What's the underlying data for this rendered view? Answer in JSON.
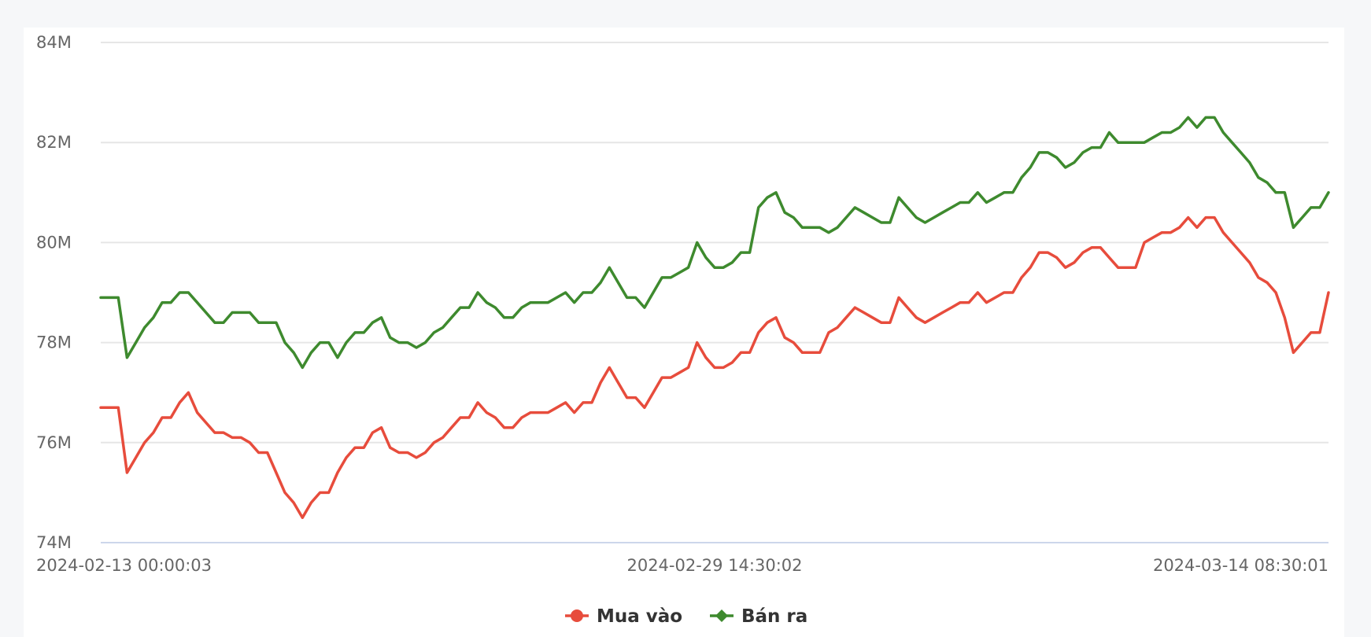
{
  "chart_data": {
    "type": "line",
    "title": "",
    "xlabel": "",
    "ylabel": "",
    "ylim": [
      74,
      84
    ],
    "y_unit_suffix": "M",
    "y_ticks": [
      74,
      76,
      78,
      80,
      82,
      84
    ],
    "y_tick_labels": [
      "74M",
      "76M",
      "78M",
      "80M",
      "82M",
      "84M"
    ],
    "x_tick_labels": [
      {
        "index": 0,
        "label": "2024-02-13 00:00:03"
      },
      {
        "index": 70,
        "label": "2024-02-29 14:30:02"
      },
      {
        "index": 141,
        "label": "2024-03-14 08:30:01"
      }
    ],
    "grid": true,
    "legend_position": "bottom-center",
    "series": [
      {
        "name": "Mua vào",
        "color": "#e74c3c",
        "marker": "circle",
        "values": [
          76.7,
          76.7,
          76.7,
          75.4,
          75.7,
          76.0,
          76.2,
          76.5,
          76.5,
          76.8,
          77.0,
          76.6,
          76.4,
          76.2,
          76.2,
          76.1,
          76.1,
          76.0,
          75.8,
          75.8,
          75.4,
          75.0,
          74.8,
          74.5,
          74.8,
          75.0,
          75.0,
          75.4,
          75.7,
          75.9,
          75.9,
          76.2,
          76.3,
          75.9,
          75.8,
          75.8,
          75.7,
          75.8,
          76.0,
          76.1,
          76.3,
          76.5,
          76.5,
          76.8,
          76.6,
          76.5,
          76.3,
          76.3,
          76.5,
          76.6,
          76.6,
          76.6,
          76.7,
          76.8,
          76.6,
          76.8,
          76.8,
          77.2,
          77.5,
          77.2,
          76.9,
          76.9,
          76.7,
          77.0,
          77.3,
          77.3,
          77.4,
          77.5,
          78.0,
          77.7,
          77.5,
          77.5,
          77.6,
          77.8,
          77.8,
          78.2,
          78.4,
          78.5,
          78.1,
          78.0,
          77.8,
          77.8,
          77.8,
          78.2,
          78.3,
          78.5,
          78.7,
          78.6,
          78.5,
          78.4,
          78.4,
          78.9,
          78.7,
          78.5,
          78.4,
          78.5,
          78.6,
          78.7,
          78.8,
          78.8,
          79.0,
          78.8,
          78.9,
          79.0,
          79.0,
          79.3,
          79.5,
          79.8,
          79.8,
          79.7,
          79.5,
          79.6,
          79.8,
          79.9,
          79.9,
          79.7,
          79.5,
          79.5,
          79.5,
          80.0,
          80.1,
          80.2,
          80.2,
          80.3,
          80.5,
          80.3,
          80.5,
          80.5,
          80.2,
          80.0,
          79.8,
          79.6,
          79.3,
          79.2,
          79.0,
          78.5,
          77.8,
          78.0,
          78.2,
          78.2,
          79.0
        ]
      },
      {
        "name": "Bán ra",
        "color": "#3e8a2e",
        "marker": "diamond",
        "values": [
          78.9,
          78.9,
          78.9,
          77.7,
          78.0,
          78.3,
          78.5,
          78.8,
          78.8,
          79.0,
          79.0,
          78.8,
          78.6,
          78.4,
          78.4,
          78.6,
          78.6,
          78.6,
          78.4,
          78.4,
          78.4,
          78.0,
          77.8,
          77.5,
          77.8,
          78.0,
          78.0,
          77.7,
          78.0,
          78.2,
          78.2,
          78.4,
          78.5,
          78.1,
          78.0,
          78.0,
          77.9,
          78.0,
          78.2,
          78.3,
          78.5,
          78.7,
          78.7,
          79.0,
          78.8,
          78.7,
          78.5,
          78.5,
          78.7,
          78.8,
          78.8,
          78.8,
          78.9,
          79.0,
          78.8,
          79.0,
          79.0,
          79.2,
          79.5,
          79.2,
          78.9,
          78.9,
          78.7,
          79.0,
          79.3,
          79.3,
          79.4,
          79.5,
          80.0,
          79.7,
          79.5,
          79.5,
          79.6,
          79.8,
          79.8,
          80.7,
          80.9,
          81.0,
          80.6,
          80.5,
          80.3,
          80.3,
          80.3,
          80.2,
          80.3,
          80.5,
          80.7,
          80.6,
          80.5,
          80.4,
          80.4,
          80.9,
          80.7,
          80.5,
          80.4,
          80.5,
          80.6,
          80.7,
          80.8,
          80.8,
          81.0,
          80.8,
          80.9,
          81.0,
          81.0,
          81.3,
          81.5,
          81.8,
          81.8,
          81.7,
          81.5,
          81.6,
          81.8,
          81.9,
          81.9,
          82.2,
          82.0,
          82.0,
          82.0,
          82.0,
          82.1,
          82.2,
          82.2,
          82.3,
          82.5,
          82.3,
          82.5,
          82.5,
          82.2,
          82.0,
          81.8,
          81.6,
          81.3,
          81.2,
          81.0,
          81.0,
          80.3,
          80.5,
          80.7,
          80.7,
          81.0
        ]
      }
    ]
  }
}
